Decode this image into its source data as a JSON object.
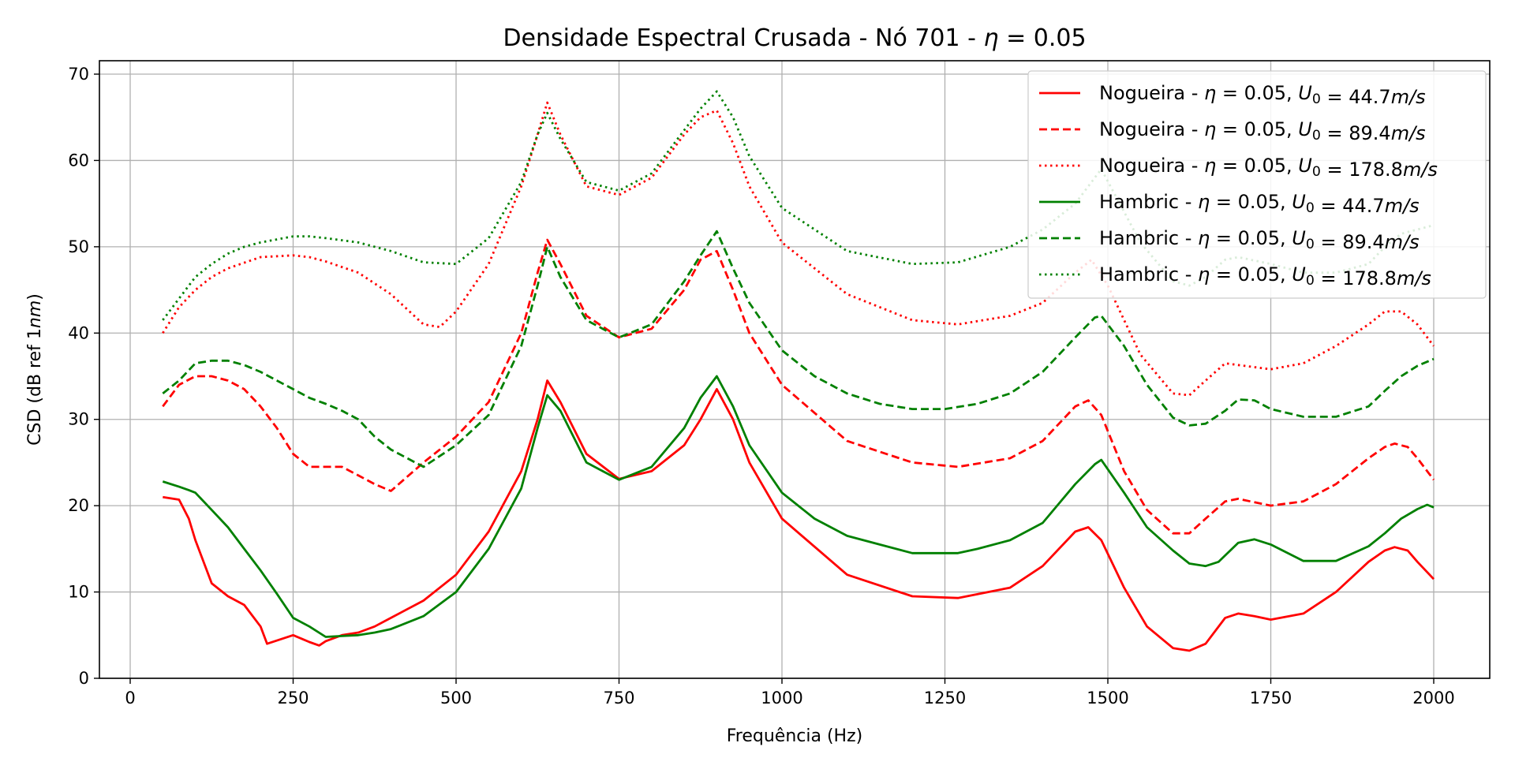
{
  "chart_data": {
    "type": "line",
    "title": "Densidade Espectral Crusada - Nó 701 - η = 0.05",
    "xlabel": "Frequência (Hz)",
    "ylabel": "CSD (dB ref 1nm)",
    "xlim": [
      -50,
      2100
    ],
    "ylim": [
      0,
      71
    ],
    "xticks": [
      0,
      250,
      500,
      750,
      1000,
      1250,
      1500,
      1750,
      2000
    ],
    "yticks": [
      0,
      10,
      20,
      30,
      40,
      50,
      60,
      70
    ],
    "grid": true,
    "legend_position": "top-right",
    "series": [
      {
        "name": "Nogueira - η = 0.05, U₀ = 44.7m/s",
        "color": "#ff0000",
        "dash": "solid",
        "x": [
          50,
          75,
          90,
          100,
          125,
          150,
          175,
          200,
          210,
          250,
          275,
          290,
          300,
          325,
          350,
          375,
          400,
          450,
          500,
          550,
          600,
          625,
          640,
          660,
          700,
          750,
          800,
          850,
          875,
          900,
          925,
          950,
          1000,
          1100,
          1200,
          1270,
          1350,
          1400,
          1450,
          1470,
          1490,
          1525,
          1560,
          1600,
          1625,
          1650,
          1680,
          1700,
          1725,
          1750,
          1800,
          1850,
          1900,
          1925,
          1940,
          1960,
          1975,
          2000
        ],
        "y": [
          21,
          20.7,
          18.5,
          16,
          11,
          9.5,
          8.5,
          6,
          4,
          5,
          4.2,
          3.8,
          4.3,
          5,
          5.3,
          6,
          7,
          9,
          12,
          17,
          24,
          30,
          34.5,
          32,
          26,
          23.1,
          24,
          27,
          30,
          33.5,
          30,
          25,
          18.5,
          12,
          9.5,
          9.3,
          10.5,
          13,
          17,
          17.5,
          16,
          10.5,
          6,
          3.5,
          3.2,
          4,
          7,
          7.5,
          7.2,
          6.8,
          7.5,
          10,
          13.5,
          14.8,
          15.2,
          14.8,
          13.5,
          11.5
        ]
      },
      {
        "name": "Nogueira - η = 0.05, U₀ = 89.4m/s",
        "color": "#ff0000",
        "dash": "dashed",
        "x": [
          50,
          75,
          100,
          125,
          150,
          175,
          200,
          225,
          250,
          275,
          300,
          325,
          350,
          375,
          400,
          450,
          500,
          550,
          600,
          625,
          640,
          660,
          700,
          750,
          800,
          850,
          875,
          900,
          925,
          950,
          1000,
          1100,
          1200,
          1270,
          1350,
          1400,
          1450,
          1470,
          1490,
          1525,
          1560,
          1600,
          1625,
          1650,
          1680,
          1700,
          1725,
          1750,
          1800,
          1850,
          1900,
          1925,
          1940,
          1960,
          1975,
          2000
        ],
        "y": [
          31.5,
          34,
          35,
          35,
          34.5,
          33.5,
          31.5,
          29,
          26,
          24.5,
          24.5,
          24.5,
          23.5,
          22.5,
          21.7,
          25,
          28,
          32,
          40,
          47,
          50.8,
          48,
          42,
          39.5,
          40.5,
          45,
          48.5,
          49.5,
          45,
          40,
          34,
          27.5,
          25,
          24.5,
          25.5,
          27.5,
          31.5,
          32.2,
          30.5,
          24,
          19.5,
          16.8,
          16.8,
          18.5,
          20.5,
          20.8,
          20.4,
          20,
          20.5,
          22.5,
          25.5,
          26.8,
          27.2,
          26.8,
          25.5,
          23
        ]
      },
      {
        "name": "Nogueira - η = 0.05, U₀ = 178.8m/s",
        "color": "#ff0000",
        "dash": "dotted",
        "x": [
          50,
          75,
          100,
          125,
          150,
          200,
          250,
          275,
          300,
          350,
          400,
          450,
          475,
          500,
          550,
          600,
          625,
          640,
          660,
          700,
          750,
          800,
          850,
          875,
          900,
          925,
          950,
          1000,
          1100,
          1200,
          1270,
          1350,
          1400,
          1450,
          1475,
          1500,
          1550,
          1600,
          1625,
          1650,
          1680,
          1700,
          1750,
          1800,
          1850,
          1900,
          1925,
          1950,
          1975,
          2000
        ],
        "y": [
          40,
          43,
          45,
          46.5,
          47.5,
          48.8,
          49,
          48.8,
          48.3,
          47,
          44.5,
          41,
          40.7,
          42.5,
          48,
          57,
          63,
          66.7,
          63,
          57,
          56,
          58,
          63,
          65,
          65.8,
          62,
          57,
          50.5,
          44.5,
          41.5,
          41,
          42,
          43.5,
          47,
          48.5,
          45.5,
          37.5,
          33,
          32.8,
          34.5,
          36.5,
          36.3,
          35.8,
          36.5,
          38.5,
          41,
          42.5,
          42.5,
          41,
          38.5
        ]
      },
      {
        "name": "Hambric -  η = 0.05, U₀ = 44.7m/s",
        "color": "#008000",
        "dash": "solid",
        "x": [
          50,
          75,
          90,
          100,
          125,
          150,
          175,
          200,
          225,
          250,
          275,
          300,
          325,
          350,
          375,
          400,
          450,
          500,
          550,
          600,
          625,
          640,
          660,
          700,
          750,
          800,
          850,
          875,
          900,
          925,
          950,
          1000,
          1050,
          1100,
          1150,
          1200,
          1250,
          1270,
          1300,
          1350,
          1400,
          1450,
          1480,
          1490,
          1525,
          1560,
          1600,
          1625,
          1650,
          1670,
          1700,
          1725,
          1750,
          1800,
          1850,
          1900,
          1925,
          1950,
          1975,
          1990,
          2000
        ],
        "y": [
          22.8,
          22.2,
          21.8,
          21.5,
          19.5,
          17.5,
          15,
          12.5,
          9.8,
          7,
          6,
          4.8,
          4.9,
          5,
          5.3,
          5.7,
          7.2,
          10,
          15,
          22,
          29,
          32.8,
          31,
          25,
          23,
          24.5,
          29,
          32.5,
          35,
          31.5,
          27,
          21.5,
          18.5,
          16.5,
          15.5,
          14.5,
          14.5,
          14.5,
          15,
          16,
          18,
          22.5,
          24.8,
          25.3,
          21.5,
          17.5,
          14.8,
          13.3,
          13,
          13.5,
          15.7,
          16.1,
          15.5,
          13.6,
          13.6,
          15.3,
          16.8,
          18.5,
          19.6,
          20.1,
          19.8
        ]
      },
      {
        "name": "Hambric -  η = 0.05, U₀ = 89.4m/s",
        "color": "#008000",
        "dash": "dashed",
        "x": [
          50,
          75,
          100,
          125,
          150,
          175,
          200,
          225,
          250,
          275,
          300,
          325,
          350,
          375,
          400,
          450,
          500,
          550,
          600,
          625,
          640,
          660,
          700,
          750,
          800,
          850,
          875,
          900,
          925,
          950,
          1000,
          1050,
          1100,
          1150,
          1200,
          1250,
          1300,
          1350,
          1400,
          1450,
          1480,
          1490,
          1525,
          1560,
          1600,
          1625,
          1650,
          1680,
          1700,
          1725,
          1750,
          1800,
          1850,
          1900,
          1925,
          1950,
          1975,
          2000
        ],
        "y": [
          33,
          34.5,
          36.5,
          36.8,
          36.8,
          36.3,
          35.5,
          34.5,
          33.5,
          32.5,
          31.8,
          31,
          30,
          28,
          26.5,
          24.5,
          27,
          30.5,
          38.5,
          45.5,
          50,
          46.5,
          41.5,
          39.5,
          41,
          46,
          49,
          51.8,
          47.5,
          43.5,
          38,
          35,
          33,
          31.8,
          31.2,
          31.2,
          31.8,
          33,
          35.5,
          39.5,
          41.8,
          42,
          38.5,
          34,
          30.2,
          29.3,
          29.5,
          31,
          32.3,
          32.2,
          31.2,
          30.3,
          30.3,
          31.5,
          33.3,
          35,
          36.2,
          37
        ]
      },
      {
        "name": "Hambric -  η = 0.05, U₀ = 178.8m/s",
        "color": "#008000",
        "dash": "dotted",
        "x": [
          50,
          75,
          100,
          125,
          150,
          175,
          200,
          250,
          275,
          300,
          350,
          400,
          450,
          500,
          550,
          600,
          625,
          640,
          660,
          700,
          750,
          800,
          850,
          875,
          900,
          925,
          950,
          1000,
          1100,
          1200,
          1270,
          1350,
          1400,
          1450,
          1475,
          1490,
          1550,
          1600,
          1625,
          1650,
          1680,
          1700,
          1750,
          1800,
          1850,
          1900,
          1925,
          1950,
          1975,
          2000
        ],
        "y": [
          41.5,
          44,
          46.5,
          48,
          49.2,
          50,
          50.5,
          51.2,
          51.2,
          51,
          50.5,
          49.5,
          48.2,
          48,
          51,
          57.5,
          63,
          65.5,
          62.5,
          57.5,
          56.5,
          58.5,
          63.5,
          66,
          68,
          65,
          60.5,
          54.5,
          49.5,
          48,
          48.2,
          50,
          52,
          55,
          57.5,
          59,
          50.5,
          46,
          45.5,
          46.5,
          48.5,
          48.8,
          48,
          47,
          47,
          48,
          50,
          51.5,
          52,
          52.5
        ]
      }
    ]
  }
}
